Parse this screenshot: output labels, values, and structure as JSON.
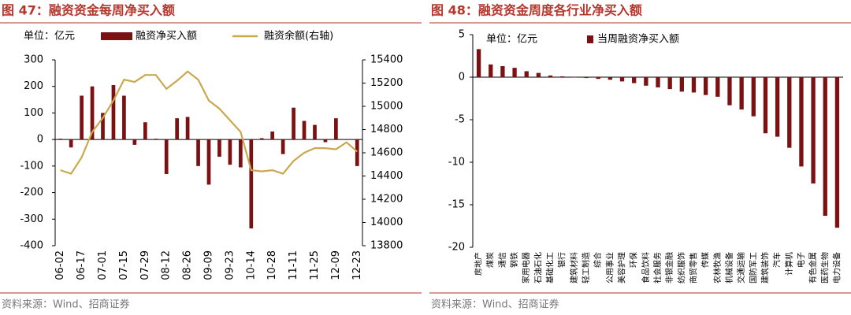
{
  "chart_data": [
    {
      "type": "bar",
      "title": "图 47：融资资金每周净买入额",
      "unit": "单位：亿元",
      "categories": [
        "06-02",
        null,
        "06-17",
        null,
        "07-01",
        null,
        "07-15",
        null,
        "07-29",
        null,
        "08-12",
        null,
        "08-26",
        null,
        "09-09",
        null,
        "09-23",
        null,
        "10-14",
        null,
        "10-28",
        null,
        "11-11",
        null,
        "11-25",
        null,
        "12-09",
        null,
        "12-23"
      ],
      "series": [
        {
          "name": "融资净买入额",
          "type": "bar",
          "color": "#7b1113",
          "values": [
            3,
            -30,
            165,
            200,
            100,
            205,
            165,
            -20,
            65,
            3,
            -130,
            80,
            85,
            -100,
            -170,
            -65,
            -95,
            -105,
            -335,
            5,
            30,
            -55,
            120,
            70,
            55,
            -10,
            80,
            0,
            -100
          ]
        },
        {
          "name": "融资余额(右轴)",
          "type": "line",
          "axis": "y2",
          "color": "#c9a94c",
          "values": [
            14450,
            14420,
            14560,
            14780,
            14900,
            15050,
            15230,
            15210,
            15270,
            15270,
            15150,
            15220,
            15300,
            15230,
            15050,
            14980,
            14880,
            14780,
            14450,
            14440,
            14450,
            14420,
            14530,
            14600,
            14640,
            14640,
            14630,
            14690,
            14610
          ]
        }
      ],
      "ylim": [
        -400,
        300
      ],
      "yticks": [
        -400,
        -300,
        -200,
        -100,
        0,
        100,
        200,
        300
      ],
      "y2lim": [
        13800,
        15400
      ],
      "y2ticks": [
        13800,
        14000,
        14200,
        14400,
        14600,
        14800,
        15000,
        15200,
        15400
      ],
      "source": "资料来源：Wind、招商证券"
    },
    {
      "type": "bar",
      "title": "图 48：融资资金周度各行业净买入额",
      "unit": "单位：亿元",
      "categories": [
        "房地产",
        "煤炭",
        "通信",
        "钢铁",
        "家用电器",
        "石油石化",
        "基础化工",
        "银行",
        "建筑材料",
        "轻工制造",
        "综合",
        "公用事业",
        "美容护理",
        "环保",
        "食品饮料",
        "社会服务",
        "非银金融",
        "纺织服饰",
        "商贸零售",
        "传媒",
        "农林牧渔",
        "机械设备",
        "交通运输",
        "国防军工",
        "建筑装饰",
        "汽车",
        "计算机",
        "电子",
        "有色金属",
        "医药生物",
        "电力设备"
      ],
      "series": [
        {
          "name": "当周融资净买入额",
          "type": "bar",
          "color": "#7b1113",
          "values": [
            3.3,
            1.5,
            1.3,
            1.1,
            0.7,
            0.5,
            0.2,
            0.1,
            0,
            -0.1,
            -0.2,
            -0.3,
            -0.5,
            -0.7,
            -1.0,
            -1.2,
            -1.4,
            -1.7,
            -1.8,
            -2.1,
            -2.3,
            -3.3,
            -3.8,
            -4.6,
            -6.6,
            -7.0,
            -8.3,
            -10.5,
            -12.5,
            -16.3,
            -17.7
          ]
        }
      ],
      "ylim": [
        -20,
        5
      ],
      "yticks": [
        -20,
        -15,
        -10,
        -5,
        0,
        5
      ],
      "source": "资料来源：Wind、招商证券"
    }
  ]
}
